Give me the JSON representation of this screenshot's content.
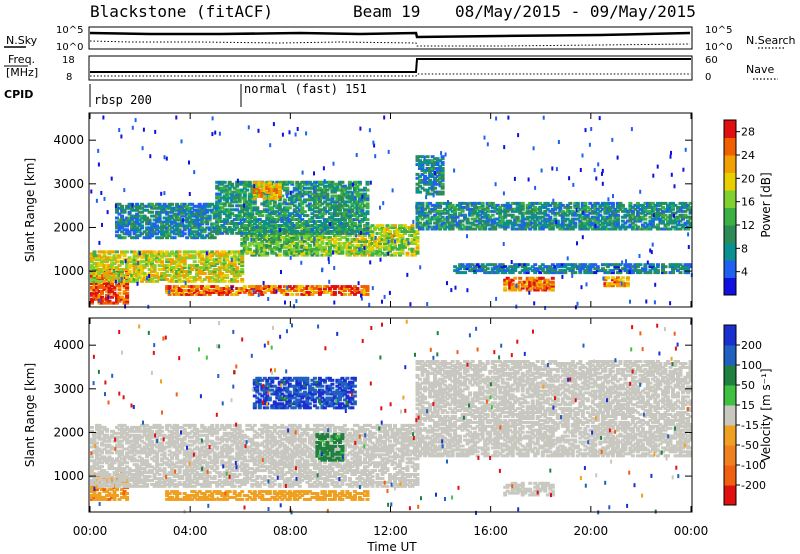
{
  "header": {
    "station": "Blackstone (fitACF)",
    "beam": "Beam 19",
    "dates": "08/May/2015 - 09/May/2015"
  },
  "top_panel": {
    "left_label": "N.Sky",
    "right_label": "N.Search",
    "ticks_left": [
      "10^5",
      "10^0"
    ],
    "ticks_right": [
      "10^5",
      "10^0"
    ]
  },
  "freq_panel": {
    "left_label_line1": "Freq.",
    "left_label_line2": "[MHz]",
    "right_label": "Nave",
    "ticks_left": [
      "18",
      "8"
    ],
    "ticks_right": [
      "60",
      "0"
    ]
  },
  "cpid": {
    "label": "CPID",
    "modes": [
      {
        "name": "rbsp 200",
        "start_hour": 0
      },
      {
        "name": "normal (fast) 151",
        "start_hour": 6
      }
    ]
  },
  "power_colorbar": {
    "label": "Power [dB]",
    "ticks": [
      "28",
      "24",
      "20",
      "16",
      "12",
      "8",
      "4"
    ]
  },
  "velocity_colorbar": {
    "label": "Velocity [m s⁻¹]",
    "ticks": [
      "200",
      "100",
      "50",
      "15",
      "-15",
      "-50",
      "-100",
      "-200"
    ]
  },
  "x_axis": {
    "label": "Time UT",
    "ticks": [
      "00:00",
      "04:00",
      "08:00",
      "12:00",
      "16:00",
      "20:00",
      "00:00"
    ]
  },
  "y_axis": {
    "label": "Slant Range [km]",
    "ticks": [
      "1000",
      "2000",
      "3000",
      "4000"
    ]
  },
  "chart_data": {
    "type": "heatmap",
    "x_range_hours": [
      0,
      24
    ],
    "y_range_km": [
      200,
      4600
    ],
    "power_scale_db": [
      0,
      30
    ],
    "velocity_scale_ms": [
      -250,
      250
    ],
    "power_bands": [
      {
        "t": [
          0,
          1.5
        ],
        "r": [
          300,
          1100
        ],
        "power": 27
      },
      {
        "t": [
          0,
          6
        ],
        "r": [
          800,
          1500
        ],
        "power": 19
      },
      {
        "t": [
          6,
          9
        ],
        "r": [
          1400,
          2100
        ],
        "power": 14
      },
      {
        "t": [
          9,
          13
        ],
        "r": [
          1400,
          2100
        ],
        "power": 17
      },
      {
        "t": [
          1,
          5
        ],
        "r": [
          1800,
          2600
        ],
        "power": 8
      },
      {
        "t": [
          5,
          11
        ],
        "r": [
          1900,
          3100
        ],
        "power": 10
      },
      {
        "t": [
          6.5,
          7.5
        ],
        "r": [
          2700,
          3100
        ],
        "power": 21
      },
      {
        "t": [
          3,
          11
        ],
        "r": [
          500,
          700
        ],
        "power": 25
      },
      {
        "t": [
          13,
          24
        ],
        "r": [
          2000,
          2600
        ],
        "power": 9
      },
      {
        "t": [
          13,
          14
        ],
        "r": [
          2800,
          3700
        ],
        "power": 8
      },
      {
        "t": [
          14.5,
          24
        ],
        "r": [
          1000,
          1200
        ],
        "power": 7
      },
      {
        "t": [
          16.5,
          18.5
        ],
        "r": [
          600,
          900
        ],
        "power": 25
      },
      {
        "t": [
          20.5,
          21.5
        ],
        "r": [
          700,
          900
        ],
        "power": 23
      }
    ],
    "velocity_bands": [
      {
        "t": [
          0,
          1.5
        ],
        "r": [
          500,
          1100
        ],
        "velocity": -40
      },
      {
        "t": [
          0,
          13
        ],
        "r": [
          800,
          2200
        ],
        "velocity": 0
      },
      {
        "t": [
          6.5,
          10.5
        ],
        "r": [
          2600,
          3300
        ],
        "velocity": 150
      },
      {
        "t": [
          3,
          11
        ],
        "r": [
          500,
          700
        ],
        "velocity": -35
      },
      {
        "t": [
          9,
          10
        ],
        "r": [
          1400,
          2000
        ],
        "velocity": 40
      },
      {
        "t": [
          13,
          24
        ],
        "r": [
          1500,
          3700
        ],
        "velocity": 0
      },
      {
        "t": [
          16.5,
          18.5
        ],
        "r": [
          600,
          900
        ],
        "velocity": 0
      }
    ]
  }
}
